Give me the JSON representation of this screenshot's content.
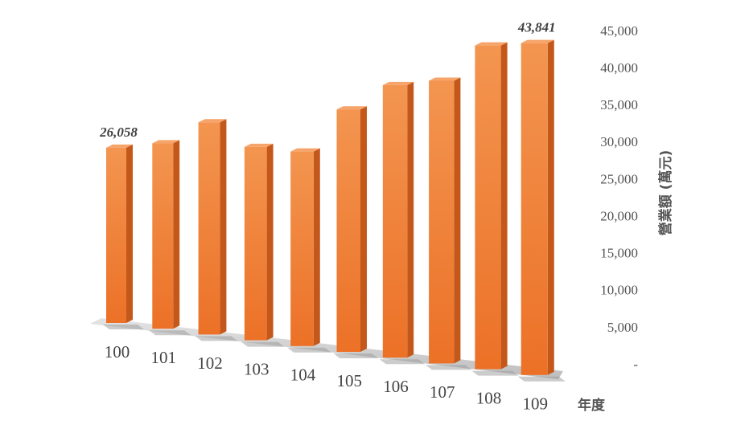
{
  "chart_data": {
    "type": "bar3d",
    "x_label": "年度",
    "y_label": "營業額 (萬元)",
    "categories": [
      "100",
      "101",
      "102",
      "103",
      "104",
      "105",
      "106",
      "107",
      "108",
      "109"
    ],
    "values": [
      26058,
      27200,
      30700,
      27600,
      27400,
      33700,
      37400,
      38300,
      43300,
      43841
    ],
    "value_labels": [
      "26,058",
      null,
      null,
      null,
      null,
      null,
      null,
      null,
      null,
      "43,841"
    ],
    "color": "#ed7d31",
    "ylim": [
      0,
      45000
    ],
    "yticks": [
      {
        "value": 0,
        "label": "-"
      },
      {
        "value": 5000,
        "label": "5,000"
      },
      {
        "value": 10000,
        "label": "10,000"
      },
      {
        "value": 15000,
        "label": "15,000"
      },
      {
        "value": 20000,
        "label": "20,000"
      },
      {
        "value": 25000,
        "label": "25,000"
      },
      {
        "value": 30000,
        "label": "30,000"
      },
      {
        "value": 35000,
        "label": "35,000"
      },
      {
        "value": 40000,
        "label": "40,000"
      },
      {
        "value": 45000,
        "label": "45,000"
      }
    ]
  }
}
